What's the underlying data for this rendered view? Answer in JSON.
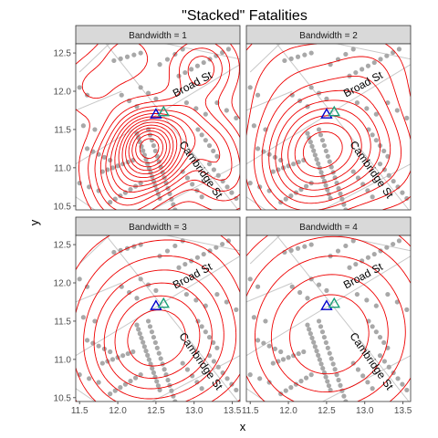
{
  "figure": {
    "title": "\"Stacked\" Fatalities",
    "xlabel": "x",
    "ylabel": "y"
  },
  "colors": {
    "contour": "#ee0000",
    "points": "#a8a8a8",
    "streets": "#c8c8c8",
    "strip_fill": "#d9d9d9",
    "panel_border": "#333333",
    "triangle_blue": "#0000cc",
    "triangle_green": "#1a9e77"
  },
  "chart_data": {
    "type": "scatter",
    "facet_variable": "Bandwidth",
    "xlim": [
      11.45,
      13.6
    ],
    "ylim": [
      10.45,
      12.62
    ],
    "x_ticks": [
      11.5,
      12.0,
      12.5,
      13.0,
      13.5
    ],
    "x_tick_labels": [
      "11.5",
      "12.0",
      "12.5",
      "13.0",
      "13.5"
    ],
    "y_ticks": [
      10.5,
      11.0,
      11.5,
      12.0,
      12.5
    ],
    "y_tick_labels": [
      "10.5",
      "11.0",
      "11.5",
      "12.0",
      "12.5"
    ],
    "grid": false,
    "panels": [
      {
        "strip": "Bandwidth = 1",
        "bandwidth": 1
      },
      {
        "strip": "Bandwidth = 2",
        "bandwidth": 2
      },
      {
        "strip": "Bandwidth = 3",
        "bandwidth": 3
      },
      {
        "strip": "Bandwidth = 4",
        "bandwidth": 4
      }
    ],
    "street_labels": [
      {
        "text": "Broad St",
        "x": 13.0,
        "y": 12.05,
        "angle": -28
      },
      {
        "text": "Cambridge St",
        "x": 13.05,
        "y": 10.95,
        "angle": 55
      }
    ],
    "pumps": [
      {
        "name": "blue",
        "x": 12.5,
        "y": 11.7
      },
      {
        "name": "green",
        "x": 12.6,
        "y": 11.73
      }
    ],
    "streets": [
      [
        [
          11.8,
          12.68
        ],
        [
          13.6,
          10.42
        ]
      ],
      [
        [
          11.5,
          12.25
        ],
        [
          11.95,
          12.68
        ]
      ],
      [
        [
          11.45,
          11.05
        ],
        [
          13.6,
          12.35
        ]
      ],
      [
        [
          11.45,
          10.62
        ],
        [
          11.7,
          10.45
        ]
      ],
      [
        [
          12.35,
          12.68
        ],
        [
          13.6,
          12.42
        ]
      ],
      [
        [
          12.45,
          10.45
        ],
        [
          13.6,
          11.05
        ]
      ],
      [
        [
          11.45,
          11.75
        ],
        [
          12.05,
          12.0
        ]
      ]
    ],
    "point_segments": [
      {
        "from": [
          12.25,
          11.45
        ],
        "to": [
          12.55,
          10.6
        ],
        "n": 16
      },
      {
        "from": [
          12.4,
          11.5
        ],
        "to": [
          12.75,
          10.45
        ],
        "n": 16
      },
      {
        "from": [
          12.2,
          11.1
        ],
        "to": [
          11.8,
          10.95
        ],
        "n": 7
      },
      {
        "from": [
          12.3,
          10.8
        ],
        "to": [
          11.9,
          10.55
        ],
        "n": 7
      },
      {
        "from": [
          13.05,
          11.5
        ],
        "to": [
          13.3,
          11.15
        ],
        "n": 6
      },
      {
        "from": [
          13.2,
          11.05
        ],
        "to": [
          13.55,
          10.6
        ],
        "n": 7
      },
      {
        "from": [
          12.85,
          10.95
        ],
        "to": [
          13.1,
          10.62
        ],
        "n": 5
      },
      {
        "from": [
          12.8,
          12.2
        ],
        "to": [
          13.45,
          12.55
        ],
        "n": 9
      },
      {
        "from": [
          11.95,
          12.4
        ],
        "to": [
          12.3,
          12.5
        ],
        "n": 5
      },
      {
        "from": [
          12.55,
          12.35
        ],
        "to": [
          12.85,
          12.55
        ],
        "n": 4
      },
      {
        "from": [
          11.6,
          11.25
        ],
        "to": [
          11.9,
          11.1
        ],
        "n": 5
      },
      {
        "from": [
          12.05,
          11.95
        ],
        "to": [
          12.25,
          11.8
        ],
        "n": 3
      },
      {
        "from": [
          12.3,
          12.05
        ],
        "to": [
          12.5,
          11.9
        ],
        "n": 3
      },
      {
        "from": [
          12.9,
          11.85
        ],
        "to": [
          13.15,
          11.7
        ],
        "n": 3
      },
      {
        "from": [
          13.3,
          11.85
        ],
        "to": [
          13.55,
          11.65
        ],
        "n": 3
      },
      {
        "from": [
          11.5,
          10.8
        ],
        "to": [
          11.75,
          10.7
        ],
        "n": 3
      },
      {
        "from": [
          11.5,
          12.05
        ],
        "to": [
          11.6,
          11.95
        ],
        "n": 2
      },
      {
        "from": [
          11.55,
          11.55
        ],
        "to": [
          11.7,
          11.5
        ],
        "n": 2
      }
    ],
    "density_peak": {
      "x": 12.4,
      "y": 11.35
    }
  }
}
